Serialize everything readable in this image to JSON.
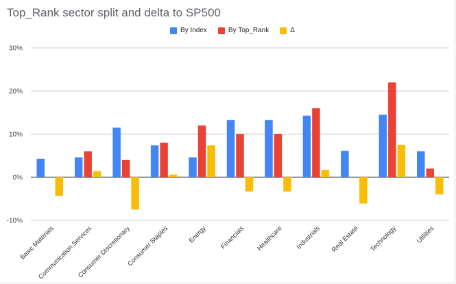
{
  "chart_data": {
    "type": "bar",
    "title": "Top_Rank sector split and delta to SP500",
    "categories": [
      "Basic Materials",
      "Communication Services",
      "Consumer Discretionary",
      "Consumer Staples",
      "Energy",
      "Financials",
      "Healthcare",
      "Industrials",
      "Real Estate",
      "Technology",
      "Utilities"
    ],
    "series": [
      {
        "name": "By Index",
        "color": "#4285f4",
        "values": [
          4.3,
          4.6,
          11.5,
          7.4,
          4.6,
          13.3,
          13.3,
          14.3,
          6.1,
          14.5,
          6.0
        ]
      },
      {
        "name": "By Top_Rank",
        "color": "#ea4335",
        "values": [
          0,
          6.0,
          4.0,
          8.0,
          12.0,
          10.0,
          10.0,
          16.0,
          0,
          22.0,
          2.0
        ]
      },
      {
        "name": "Δ",
        "color": "#fbbc04",
        "values": [
          -4.3,
          1.4,
          -7.5,
          0.6,
          7.4,
          -3.3,
          -3.3,
          1.7,
          -6.1,
          7.5,
          -4.0
        ]
      }
    ],
    "ylim": [
      -10,
      30
    ],
    "yticks": [
      -10,
      0,
      10,
      20,
      30
    ],
    "ytick_labels": [
      "-10%",
      "0%",
      "10%",
      "20%",
      "30%"
    ],
    "xlabel": "",
    "ylabel": "",
    "legend_position": "top-center",
    "grid": true
  }
}
